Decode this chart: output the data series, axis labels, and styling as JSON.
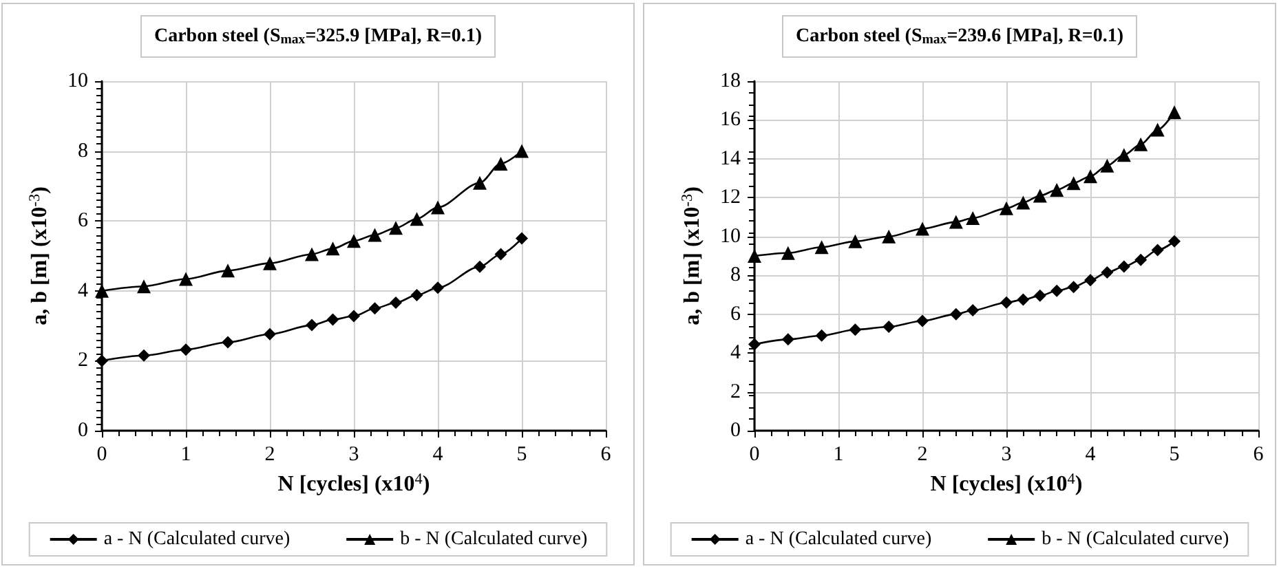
{
  "chart_data": [
    {
      "type": "line",
      "title": "Carbon steel (S$_{max}$=325.9 [MPa], R=0.1)",
      "xlabel": "N [cycles] (x10$^{4}$)",
      "ylabel": "a, b [m] (x10$^{-3}$)",
      "xlim": [
        0,
        6
      ],
      "xticks": [
        0,
        1,
        2,
        3,
        4,
        5,
        6
      ],
      "ylim": [
        0,
        10
      ],
      "yticks": [
        0,
        2,
        4,
        6,
        8,
        10
      ],
      "grid": true,
      "legend": "bottom",
      "line_style": "solid",
      "x": [
        0,
        0.5,
        1,
        1.5,
        2,
        2.5,
        2.75,
        3,
        3.25,
        3.5,
        3.75,
        4,
        4.5,
        4.75,
        5
      ],
      "series": [
        {
          "name": "a - N (Calculated curve)",
          "color": "#000000",
          "marker": "diamond",
          "values": [
            2.0,
            2.15,
            2.32,
            2.53,
            2.76,
            3.02,
            3.18,
            3.28,
            3.5,
            3.66,
            3.88,
            4.09,
            4.69,
            5.05,
            5.5
          ]
        },
        {
          "name": "b - N (Calculated curve)",
          "color": "#000000",
          "marker": "triangle",
          "values": [
            4.0,
            4.13,
            4.34,
            4.58,
            4.79,
            5.05,
            5.21,
            5.43,
            5.6,
            5.8,
            6.06,
            6.39,
            7.09,
            7.64,
            8.0
          ]
        }
      ]
    },
    {
      "type": "line",
      "title": "Carbon steel (S$_{max}$=239.6 [MPa], R=0.1)",
      "xlabel": "N [cycles] (x10$^{4}$)",
      "ylabel": "a, b [m] (x10$^{-3}$)",
      "xlim": [
        0,
        6
      ],
      "xticks": [
        0,
        1,
        2,
        3,
        4,
        5,
        6
      ],
      "ylim": [
        0,
        18
      ],
      "yticks": [
        0,
        2,
        4,
        6,
        8,
        10,
        12,
        14,
        16,
        18
      ],
      "grid": true,
      "legend": "bottom",
      "line_style": "solid",
      "x": [
        0,
        0.4,
        0.8,
        1.2,
        1.6,
        2.0,
        2.4,
        2.6,
        3.0,
        3.2,
        3.4,
        3.6,
        3.8,
        4.0,
        4.2,
        4.4,
        4.6,
        4.8,
        5.0
      ],
      "series": [
        {
          "name": "a - N (Calculated curve)",
          "color": "#000000",
          "marker": "diamond",
          "values": [
            4.45,
            4.7,
            4.9,
            5.2,
            5.35,
            5.65,
            6.0,
            6.2,
            6.6,
            6.75,
            6.95,
            7.2,
            7.4,
            7.75,
            8.15,
            8.45,
            8.8,
            9.3,
            9.75
          ]
        },
        {
          "name": "b - N (Calculated curve)",
          "color": "#000000",
          "marker": "triangle",
          "values": [
            9.0,
            9.15,
            9.45,
            9.75,
            10.0,
            10.4,
            10.75,
            10.95,
            11.45,
            11.75,
            12.1,
            12.4,
            12.75,
            13.1,
            13.65,
            14.2,
            14.75,
            15.5,
            16.4
          ]
        }
      ]
    }
  ]
}
